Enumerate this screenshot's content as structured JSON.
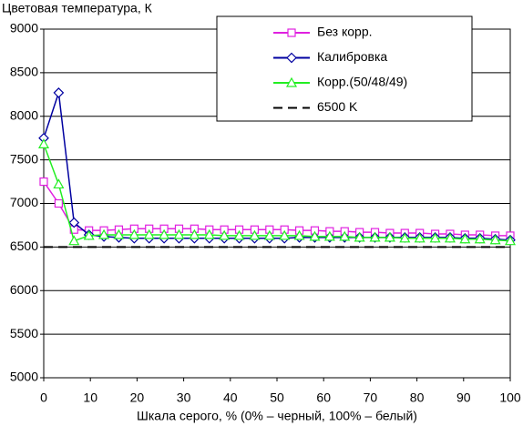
{
  "chart_data": {
    "type": "line",
    "title": "Цветовая температура, К",
    "x_label": "Шкала серого, % (0% – черный, 100% – белый)",
    "x": [
      0,
      3.2,
      6.5,
      9.7,
      12.9,
      16.1,
      19.4,
      22.6,
      25.8,
      29,
      32.3,
      35.5,
      38.7,
      41.9,
      45.2,
      48.4,
      51.6,
      54.8,
      58.1,
      61.3,
      64.5,
      67.7,
      71,
      74.2,
      77.4,
      80.6,
      83.9,
      87.1,
      90.3,
      93.5,
      96.8,
      100
    ],
    "series": [
      {
        "name": "Без корр.",
        "color": "#e020e0",
        "marker": "square",
        "values": [
          7250,
          7000,
          6700,
          6690,
          6690,
          6700,
          6710,
          6710,
          6710,
          6710,
          6710,
          6700,
          6700,
          6700,
          6700,
          6700,
          6700,
          6690,
          6690,
          6680,
          6680,
          6670,
          6670,
          6660,
          6660,
          6660,
          6650,
          6650,
          6640,
          6640,
          6630,
          6630
        ]
      },
      {
        "name": "Калибровка",
        "color": "#0000a0",
        "marker": "diamond",
        "values": [
          7750,
          8270,
          6780,
          6640,
          6620,
          6610,
          6600,
          6600,
          6600,
          6600,
          6600,
          6600,
          6600,
          6600,
          6600,
          6600,
          6600,
          6610,
          6610,
          6610,
          6610,
          6610,
          6610,
          6610,
          6610,
          6610,
          6610,
          6610,
          6600,
          6600,
          6590,
          6580
        ]
      },
      {
        "name": "Корр.(50/48/49)",
        "color": "#22ee22",
        "marker": "triangle",
        "values": [
          7680,
          7220,
          6570,
          6630,
          6640,
          6640,
          6640,
          6640,
          6640,
          6640,
          6640,
          6640,
          6630,
          6630,
          6630,
          6630,
          6630,
          6630,
          6620,
          6620,
          6620,
          6610,
          6610,
          6610,
          6600,
          6600,
          6600,
          6600,
          6590,
          6590,
          6580,
          6570
        ]
      },
      {
        "name": "6500 K",
        "color": "#000000",
        "marker": "none",
        "dashed": true,
        "x": [
          0,
          100
        ],
        "values": [
          6500,
          6500
        ]
      }
    ],
    "xlim": [
      0,
      100
    ],
    "xticks": [
      0,
      10,
      20,
      30,
      40,
      50,
      60,
      70,
      80,
      90,
      100
    ],
    "ylim": [
      5000,
      9000
    ],
    "yticks": [
      5000,
      5500,
      6000,
      6500,
      7000,
      7500,
      8000,
      8500,
      9000
    ],
    "grid": true,
    "legend": "top"
  }
}
